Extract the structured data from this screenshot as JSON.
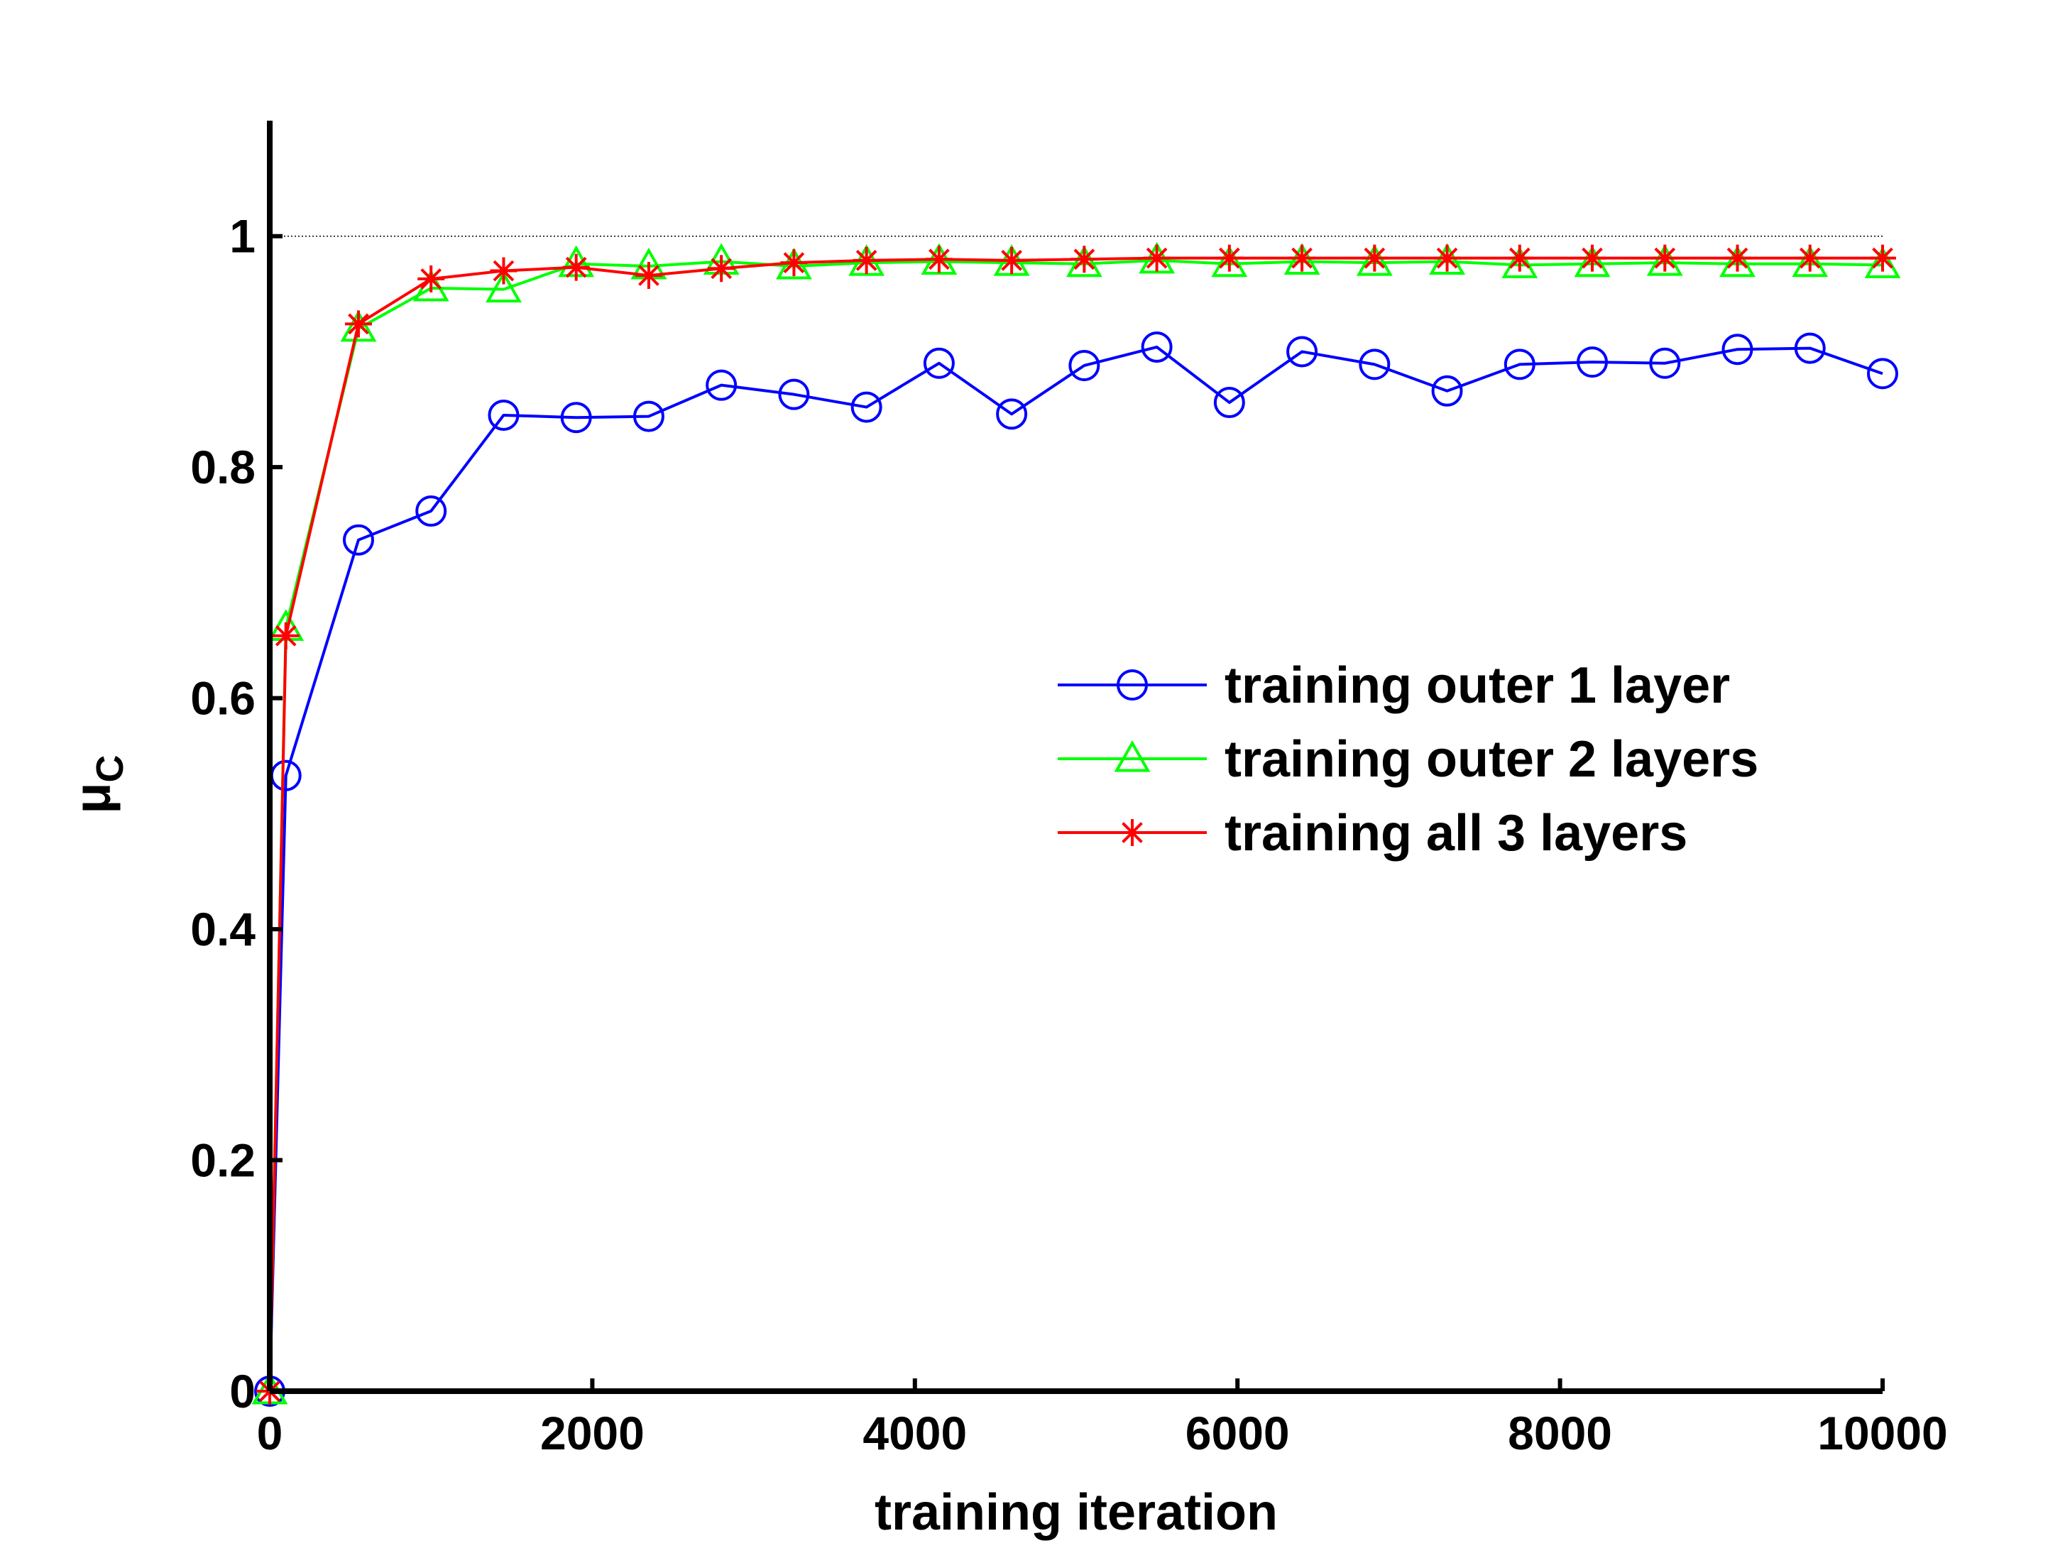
{
  "chart_data": {
    "type": "line",
    "title": "",
    "xlabel": "training iteration",
    "ylabel_main": "μ",
    "ylabel_sub": "C",
    "xlim": [
      0,
      10000
    ],
    "ylim": [
      0,
      1.1
    ],
    "xticks": [
      0,
      2000,
      4000,
      6000,
      8000,
      10000
    ],
    "xtick_labels": [
      "0",
      "2000",
      "4000",
      "6000",
      "8000",
      "10000"
    ],
    "yticks": [
      0,
      0.2,
      0.4,
      0.6,
      0.8,
      1
    ],
    "ytick_labels": [
      "0",
      "0.2",
      "0.4",
      "0.6",
      "0.8",
      "1"
    ],
    "reference_line": 1,
    "legend_position": "center-right",
    "x": [
      0,
      100,
      550,
      1000,
      1450,
      1900,
      2350,
      2800,
      3250,
      3700,
      4150,
      4600,
      5050,
      5500,
      5950,
      6400,
      6850,
      7300,
      7750,
      8200,
      8650,
      9100,
      9550,
      10000
    ],
    "series": [
      {
        "name": "training outer 1 layer",
        "color": "#0000ff",
        "marker": "circle",
        "values": [
          0,
          0.533,
          0.737,
          0.762,
          0.845,
          0.843,
          0.844,
          0.871,
          0.863,
          0.852,
          0.89,
          0.846,
          0.888,
          0.904,
          0.856,
          0.9,
          0.889,
          0.866,
          0.889,
          0.891,
          0.89,
          0.902,
          0.903,
          0.881
        ]
      },
      {
        "name": "training outer 2 layers",
        "color": "#00ff00",
        "marker": "triangle",
        "values": [
          0,
          0.661,
          0.92,
          0.955,
          0.954,
          0.976,
          0.974,
          0.978,
          0.974,
          0.977,
          0.978,
          0.977,
          0.976,
          0.979,
          0.976,
          0.978,
          0.977,
          0.978,
          0.975,
          0.976,
          0.977,
          0.976,
          0.976,
          0.975
        ]
      },
      {
        "name": "training all 3 layers",
        "color": "#ff0000",
        "marker": "asterisk",
        "values": [
          0,
          0.654,
          0.924,
          0.963,
          0.97,
          0.973,
          0.966,
          0.972,
          0.977,
          0.979,
          0.98,
          0.979,
          0.98,
          0.981,
          0.981,
          0.981,
          0.981,
          0.981,
          0.981,
          0.981,
          0.981,
          0.981,
          0.981,
          0.981
        ]
      }
    ]
  }
}
